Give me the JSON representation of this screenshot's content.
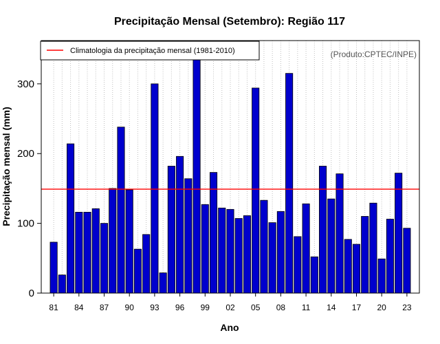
{
  "colors": {
    "bar": "#0000CD",
    "bar_edge": "#000000",
    "climatology": "#FF0000",
    "grid": "#BEBEBE",
    "credit": "#555555"
  },
  "chart_data": {
    "type": "bar",
    "title": "Precipitação Mensal (Setembro): Região 117",
    "xlabel": "Ano",
    "ylabel": "Precipitação mensal (mm)",
    "ylim": [
      0,
      362
    ],
    "yticks": [
      0,
      100,
      200,
      300
    ],
    "grid": "vertical dotted",
    "legend": {
      "position": "top-left",
      "label": "Climatologia da precipitação mensal (1981-2010)"
    },
    "credit": "(Produto:CPTEC/INPE)",
    "climatology": 149,
    "categories": [
      "81",
      "82",
      "83",
      "84",
      "85",
      "86",
      "87",
      "88",
      "89",
      "90",
      "91",
      "92",
      "93",
      "94",
      "95",
      "96",
      "97",
      "98",
      "99",
      "00",
      "01",
      "02",
      "03",
      "04",
      "05",
      "06",
      "07",
      "08",
      "09",
      "10",
      "11",
      "12",
      "13",
      "14",
      "15",
      "16",
      "17",
      "18",
      "19",
      "20",
      "21",
      "22",
      "23"
    ],
    "x_tick_labels": [
      "81",
      "84",
      "87",
      "90",
      "93",
      "96",
      "99",
      "02",
      "05",
      "08",
      "11",
      "14",
      "17",
      "20",
      "23"
    ],
    "values": [
      73,
      26,
      214,
      116,
      116,
      121,
      100,
      150,
      238,
      148,
      63,
      84,
      300,
      29,
      182,
      196,
      164,
      342,
      127,
      173,
      122,
      120,
      107,
      111,
      294,
      133,
      101,
      117,
      315,
      81,
      128,
      52,
      182,
      135,
      171,
      77,
      70,
      110,
      129,
      49,
      106,
      172,
      93
    ]
  }
}
